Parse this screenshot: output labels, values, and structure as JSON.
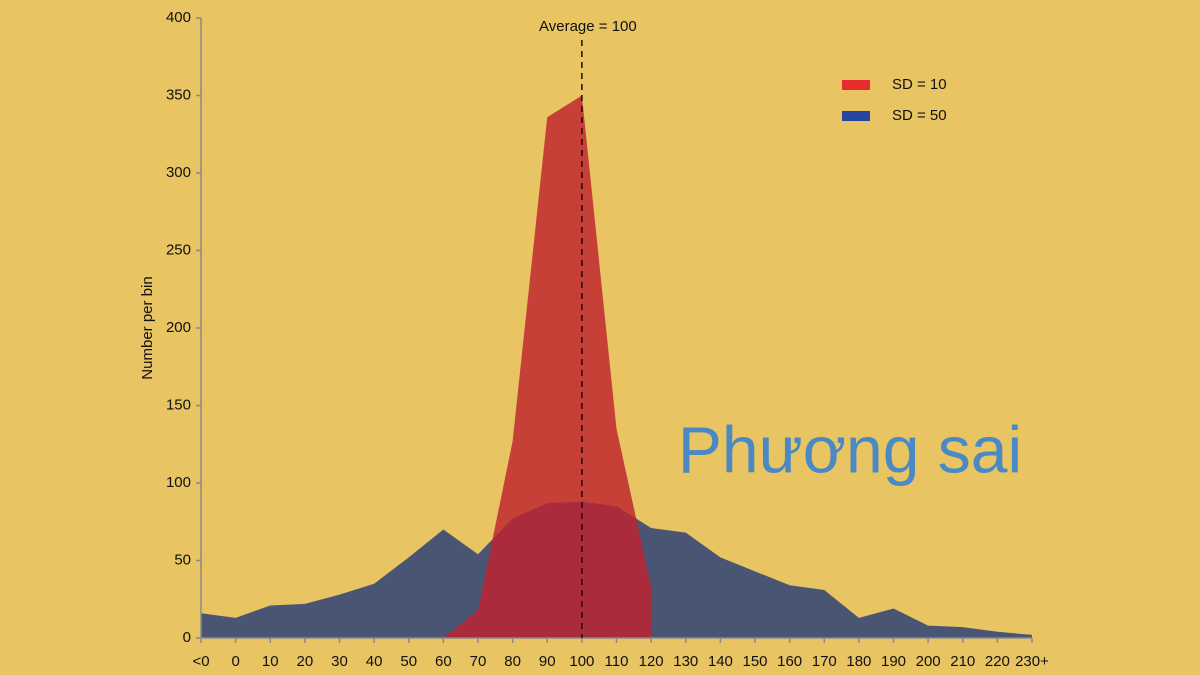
{
  "chart_data": {
    "type": "area",
    "y_label": "Number per bin",
    "categories": [
      "<0",
      "0",
      "10",
      "20",
      "30",
      "40",
      "50",
      "60",
      "70",
      "80",
      "90",
      "100",
      "110",
      "120",
      "130",
      "140",
      "150",
      "160",
      "170",
      "180",
      "190",
      "200",
      "210",
      "220",
      "230+"
    ],
    "series": [
      {
        "name": "SD = 50",
        "color": "#2645a0",
        "fill": "#4a5573",
        "values": [
          16,
          13,
          21,
          22,
          28,
          35,
          52,
          70,
          54,
          77,
          87,
          88,
          85,
          71,
          68,
          52,
          43,
          34,
          31,
          13,
          19,
          8,
          7,
          4,
          2
        ]
      },
      {
        "name": "SD = 10",
        "color": "#e52d2d",
        "fill": "#c0232f",
        "values": [
          null,
          null,
          null,
          null,
          null,
          null,
          null,
          0,
          18,
          127,
          336,
          350,
          135,
          33,
          null,
          null,
          null,
          null,
          null,
          null,
          null,
          null,
          null,
          null,
          null
        ]
      }
    ],
    "legend_order": [
      1,
      0
    ],
    "ylim": [
      0,
      400
    ],
    "yticks": [
      0,
      50,
      100,
      150,
      200,
      250,
      300,
      350,
      400
    ],
    "annotations": [
      {
        "text": "Average = 100",
        "x": "100"
      }
    ],
    "overlay_text": "Phương sai"
  }
}
